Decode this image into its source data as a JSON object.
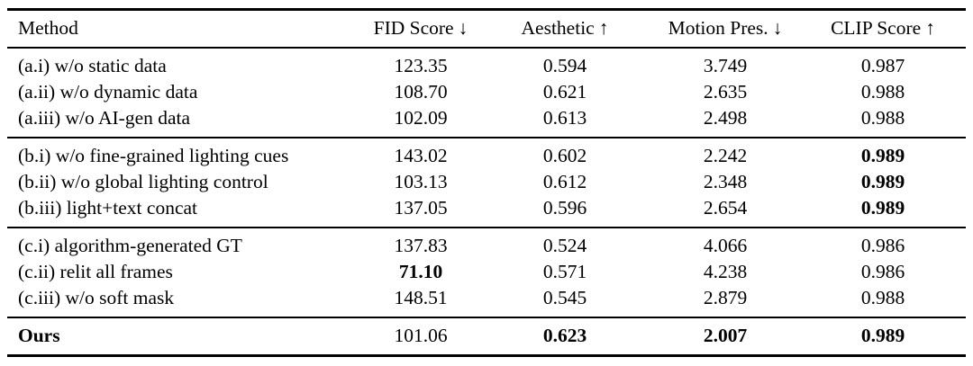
{
  "page": {
    "background_color": "#ffffff",
    "text_color": "#000000"
  },
  "table": {
    "columns": [
      {
        "label": "Method",
        "arrow": ""
      },
      {
        "label": "FID Score",
        "arrow": "↓"
      },
      {
        "label": "Aesthetic",
        "arrow": "↑"
      },
      {
        "label": "Motion Pres.",
        "arrow": "↓"
      },
      {
        "label": "CLIP Score",
        "arrow": "↑"
      }
    ],
    "groups": [
      {
        "rows": [
          {
            "method": "(a.i) w/o static data",
            "fid": "123.35",
            "aesthetic": "0.594",
            "motion": "3.749",
            "clip": "0.987"
          },
          {
            "method": "(a.ii) w/o dynamic data",
            "fid": "108.70",
            "aesthetic": "0.621",
            "motion": "2.635",
            "clip": "0.988"
          },
          {
            "method": "(a.iii) w/o AI-gen data",
            "fid": "102.09",
            "aesthetic": "0.613",
            "motion": "2.498",
            "clip": "0.988"
          }
        ]
      },
      {
        "rows": [
          {
            "method": "(b.i) w/o fine-grained lighting cues",
            "fid": "143.02",
            "aesthetic": "0.602",
            "motion": "2.242",
            "clip": "0.989"
          },
          {
            "method": "(b.ii) w/o global lighting control",
            "fid": "103.13",
            "aesthetic": "0.612",
            "motion": "2.348",
            "clip": "0.989"
          },
          {
            "method": "(b.iii) light+text concat",
            "fid": "137.05",
            "aesthetic": "0.596",
            "motion": "2.654",
            "clip": "0.989"
          }
        ]
      },
      {
        "rows": [
          {
            "method": "(c.i) algorithm-generated GT",
            "fid": "137.83",
            "aesthetic": "0.524",
            "motion": "4.066",
            "clip": "0.986"
          },
          {
            "method": "(c.ii) relit all frames",
            "fid": "71.10",
            "aesthetic": "0.571",
            "motion": "4.238",
            "clip": "0.986"
          },
          {
            "method": "(c.iii) w/o soft mask",
            "fid": "148.51",
            "aesthetic": "0.545",
            "motion": "2.879",
            "clip": "0.988"
          }
        ]
      }
    ],
    "final_row": {
      "method": "Ours",
      "fid": "101.06",
      "aesthetic": "0.623",
      "motion": "2.007",
      "clip": "0.989"
    }
  }
}
